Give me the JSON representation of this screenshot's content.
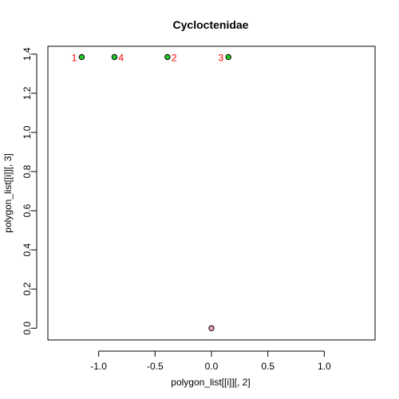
{
  "chart_data": {
    "type": "scatter",
    "title": "Cycloctenidae",
    "xlabel": "polygon_list[[i]][, 2]",
    "ylabel": "polygon_list[[i]][, 3]",
    "xlim": [
      -1.45,
      1.45
    ],
    "ylim": [
      -0.06,
      1.44
    ],
    "x_ticks": [
      -1.0,
      -0.5,
      0.0,
      0.5,
      1.0
    ],
    "x_tick_labels": [
      "-1.0",
      "-0.5",
      "0.0",
      "0.5",
      "1.0"
    ],
    "y_ticks": [
      0.0,
      0.2,
      0.4,
      0.6,
      0.8,
      1.0,
      1.2,
      1.4
    ],
    "y_tick_labels": [
      "0.0",
      "0.2",
      "0.4",
      "0.6",
      "0.8",
      "1.0",
      "1.2",
      "1.4"
    ],
    "grid": false,
    "points": [
      {
        "label": "1",
        "x": -1.15,
        "y": 1.385,
        "color": "#22cc22",
        "label_side": "left"
      },
      {
        "label": "4",
        "x": -0.86,
        "y": 1.385,
        "color": "#22cc22",
        "label_side": "right"
      },
      {
        "label": "2",
        "x": -0.39,
        "y": 1.385,
        "color": "#22cc22",
        "label_side": "right"
      },
      {
        "label": "3",
        "x": 0.15,
        "y": 1.385,
        "color": "#22cc22",
        "label_side": "left"
      },
      {
        "label": "",
        "x": 0.0,
        "y": 0.0,
        "color": "#f0a0c0",
        "label_side": "none"
      }
    ],
    "point_label_color": "#ff0000"
  }
}
